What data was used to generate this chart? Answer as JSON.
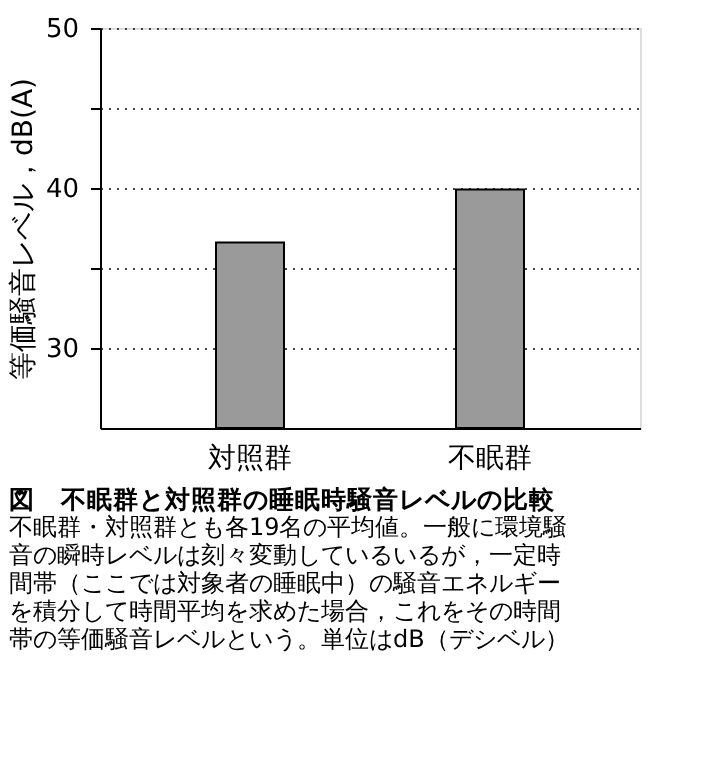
{
  "chart_data": {
    "type": "bar",
    "title": "図　不眠群と対照群の睡眠時騒音レベルの比較",
    "ylabel": "等価騒音レベル，dB(A)",
    "categories": [
      "対照群",
      "不眠群"
    ],
    "values": [
      36.6,
      39.9
    ],
    "color": "#9a9a9a",
    "ylim": [
      25,
      50
    ],
    "yticks": [
      30,
      {
        "value": 35,
        "label": null
      },
      40,
      {
        "value": 45,
        "label": null
      },
      50
    ],
    "grid": "y",
    "annotations": [
      "不眠群・対照群とも各19名の平均値。一般に環境騒",
      "音の瞬時レベルは刻々変動しているいるが，一定時",
      "間帯（ここでは対象者の睡眠中）の騒音エネルギー",
      "を積分して時間平均を求めた場合，これをその時間",
      "帯の等価騒音レベルという。単位はdB（デシベル）"
    ]
  }
}
